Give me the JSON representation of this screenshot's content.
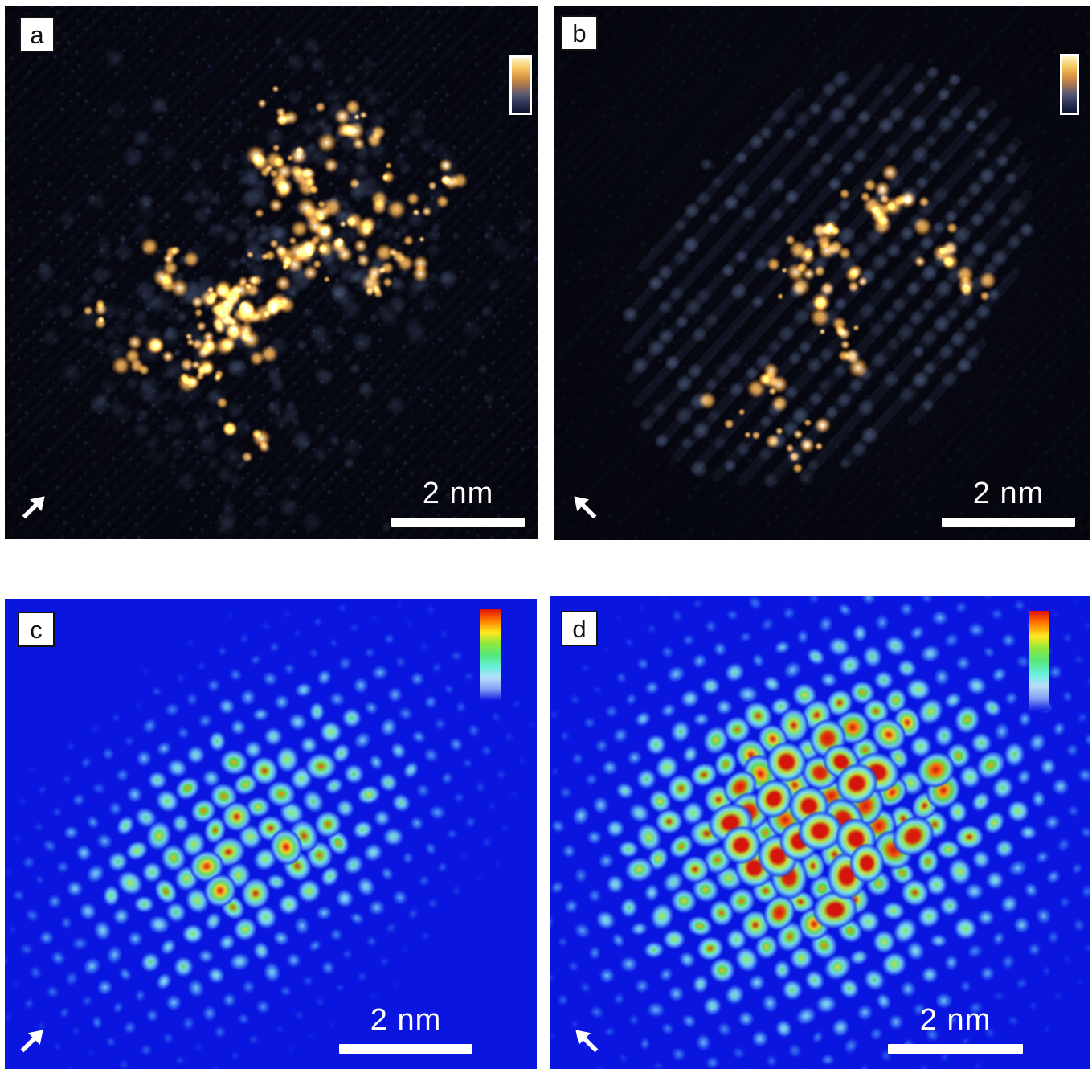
{
  "figure": {
    "panels": [
      {
        "id": "a",
        "label": "a",
        "scale_bar_label": "2 nm",
        "arrow_direction": "up-right",
        "colorbar": "thermal",
        "style": "stem"
      },
      {
        "id": "b",
        "label": "b",
        "scale_bar_label": "2 nm",
        "arrow_direction": "up-left",
        "colorbar": "thermal",
        "style": "stem"
      },
      {
        "id": "c",
        "label": "c",
        "scale_bar_label": "2 nm",
        "arrow_direction": "up-right",
        "colorbar": "rainbow",
        "style": "sim"
      },
      {
        "id": "d",
        "label": "d",
        "scale_bar_label": "2 nm",
        "arrow_direction": "up-left",
        "colorbar": "rainbow",
        "style": "sim"
      }
    ],
    "colors": {
      "page_bg": "#ffffff",
      "stem_bg": "#06070f",
      "sim_bg": "#0a16e0",
      "label_box_bg": "#ffffff",
      "label_text": "#111111",
      "scalebar": "#ffffff",
      "arrow": "#ffffff",
      "lattice_dot": "#5f73a5",
      "mid_blob": "#7d96c8",
      "bright_core": "#fff7e0",
      "bright_mid": "#f6b24a",
      "bright_edge": "#c8741a",
      "thermal_colorbar_stops": [
        "#fdf5cf",
        "#f6cd66",
        "#e09a42",
        "#a57550",
        "#5c5a74",
        "#2c3356",
        "#10152e"
      ],
      "rainbow_colorbar_stops": [
        "#e01000",
        "#ff7c00",
        "#ffe81e",
        "#8ee83c",
        "#55e87c",
        "#67f0dc",
        "#b8dcfa",
        "#7e9cf4",
        "#0a16e0"
      ],
      "jet_ramp": [
        [
          0,
          "#0a16e0"
        ],
        [
          0.14,
          "#2e62f0"
        ],
        [
          0.3,
          "#7cc6f8"
        ],
        [
          0.44,
          "#7df2e2"
        ],
        [
          0.57,
          "#55e44a"
        ],
        [
          0.7,
          "#b8ee38"
        ],
        [
          0.8,
          "#ffd820"
        ],
        [
          0.9,
          "#ff7c00"
        ],
        [
          1,
          "#e01400"
        ]
      ]
    }
  }
}
